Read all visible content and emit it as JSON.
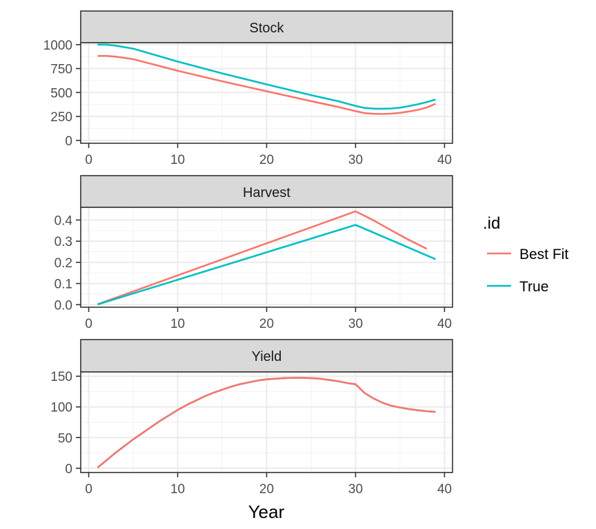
{
  "chart_data": {
    "type": "line",
    "layout": "facet_wrap_vertical",
    "xlabel": "Year",
    "xlim": [
      -0.9,
      40.9
    ],
    "x_ticks": [
      0,
      10,
      20,
      30,
      40
    ],
    "legend": {
      "title": ".id",
      "placement": "right",
      "entries": [
        {
          "label": "Best Fit",
          "color": "#F8766D"
        },
        {
          "label": "True",
          "color": "#00BFC4"
        }
      ]
    },
    "panels": [
      {
        "title": "Stock",
        "ylim": [
          -30,
          1020
        ],
        "y_ticks": [
          0,
          250,
          500,
          750,
          1000
        ],
        "y_tick_labels": [
          "0",
          "250",
          "500",
          "750",
          "1000"
        ],
        "series": [
          {
            "name": "Best Fit",
            "color": "#F8766D",
            "x": [
              1,
              2,
              3,
              5,
              10,
              15,
              20,
              25,
              28,
              30,
              31,
              32,
              33,
              34,
              35,
              36,
              37,
              38,
              39
            ],
            "y": [
              882,
              882,
              875,
              848,
              727,
              617,
              513,
              410,
              350,
              306,
              285,
              278,
              276,
              279,
              288,
              302,
              319,
              343,
              383
            ]
          },
          {
            "name": "True",
            "color": "#00BFC4",
            "x": [
              1,
              2,
              3,
              5,
              10,
              15,
              20,
              25,
              28,
              30,
              31,
              32,
              33,
              34,
              35,
              36,
              37,
              38,
              39
            ],
            "y": [
              1000,
              1000,
              990,
              958,
              823,
              700,
              585,
              473,
              410,
              360,
              340,
              332,
              330,
              333,
              342,
              358,
              377,
              400,
              427
            ]
          }
        ]
      },
      {
        "title": "Harvest",
        "ylim": [
          -0.012,
          0.46
        ],
        "y_ticks": [
          0,
          0.1,
          0.2,
          0.3,
          0.4
        ],
        "y_tick_labels": [
          "0.0",
          "0.1",
          "0.2",
          "0.3",
          "0.4"
        ],
        "series": [
          {
            "name": "Best Fit",
            "color": "#F8766D",
            "x": [
              1,
              30,
              32,
              34,
              36,
              38
            ],
            "y": [
              0.002,
              0.441,
              0.399,
              0.352,
              0.306,
              0.264
            ]
          },
          {
            "name": "True",
            "color": "#00BFC4",
            "x": [
              1,
              30,
              39
            ],
            "y": [
              0.001,
              0.377,
              0.215
            ]
          }
        ]
      },
      {
        "title": "Yield",
        "ylim": [
          -7,
          157
        ],
        "y_ticks": [
          0,
          50,
          100,
          150
        ],
        "y_tick_labels": [
          "0",
          "50",
          "100",
          "150"
        ],
        "series": [
          {
            "name": "True",
            "color": "#00BFC4",
            "x": [
              1,
              2,
              3,
              4,
              5,
              6,
              7,
              8,
              9,
              10,
              11,
              12,
              13,
              14,
              15,
              16,
              17,
              18,
              19,
              20,
              21,
              22,
              23,
              24,
              25,
              26,
              27,
              28,
              29,
              30,
              31,
              32,
              33,
              34,
              35,
              36,
              37,
              38,
              39
            ],
            "y": [
              1,
              13,
              25,
              36,
              47,
              57,
              67,
              77,
              86,
              95,
              103,
              110,
              117,
              123,
              128,
              133,
              137,
              140,
              143,
              145,
              146,
              147,
              147.5,
              147.5,
              147,
              146,
              144,
              142,
              139,
              137,
              123,
              114,
              107,
              102,
              99,
              96.5,
              94.5,
              93,
              92
            ]
          },
          {
            "name": "Best Fit",
            "color": "#F8766D",
            "x": [
              1,
              2,
              3,
              4,
              5,
              6,
              7,
              8,
              9,
              10,
              11,
              12,
              13,
              14,
              15,
              16,
              17,
              18,
              19,
              20,
              21,
              22,
              23,
              24,
              25,
              26,
              27,
              28,
              29,
              30,
              31,
              32,
              33,
              34,
              35,
              36,
              37,
              38,
              39
            ],
            "y": [
              1,
              13,
              25,
              36,
              47,
              57,
              67,
              77,
              86,
              95,
              103,
              110,
              117,
              123,
              128,
              133,
              137,
              140,
              143,
              145,
              146,
              147,
              147.5,
              147.5,
              147,
              146,
              144,
              142,
              139,
              137,
              123,
              114,
              107,
              102,
              99,
              96.5,
              94.5,
              93,
              92
            ]
          }
        ]
      }
    ]
  }
}
